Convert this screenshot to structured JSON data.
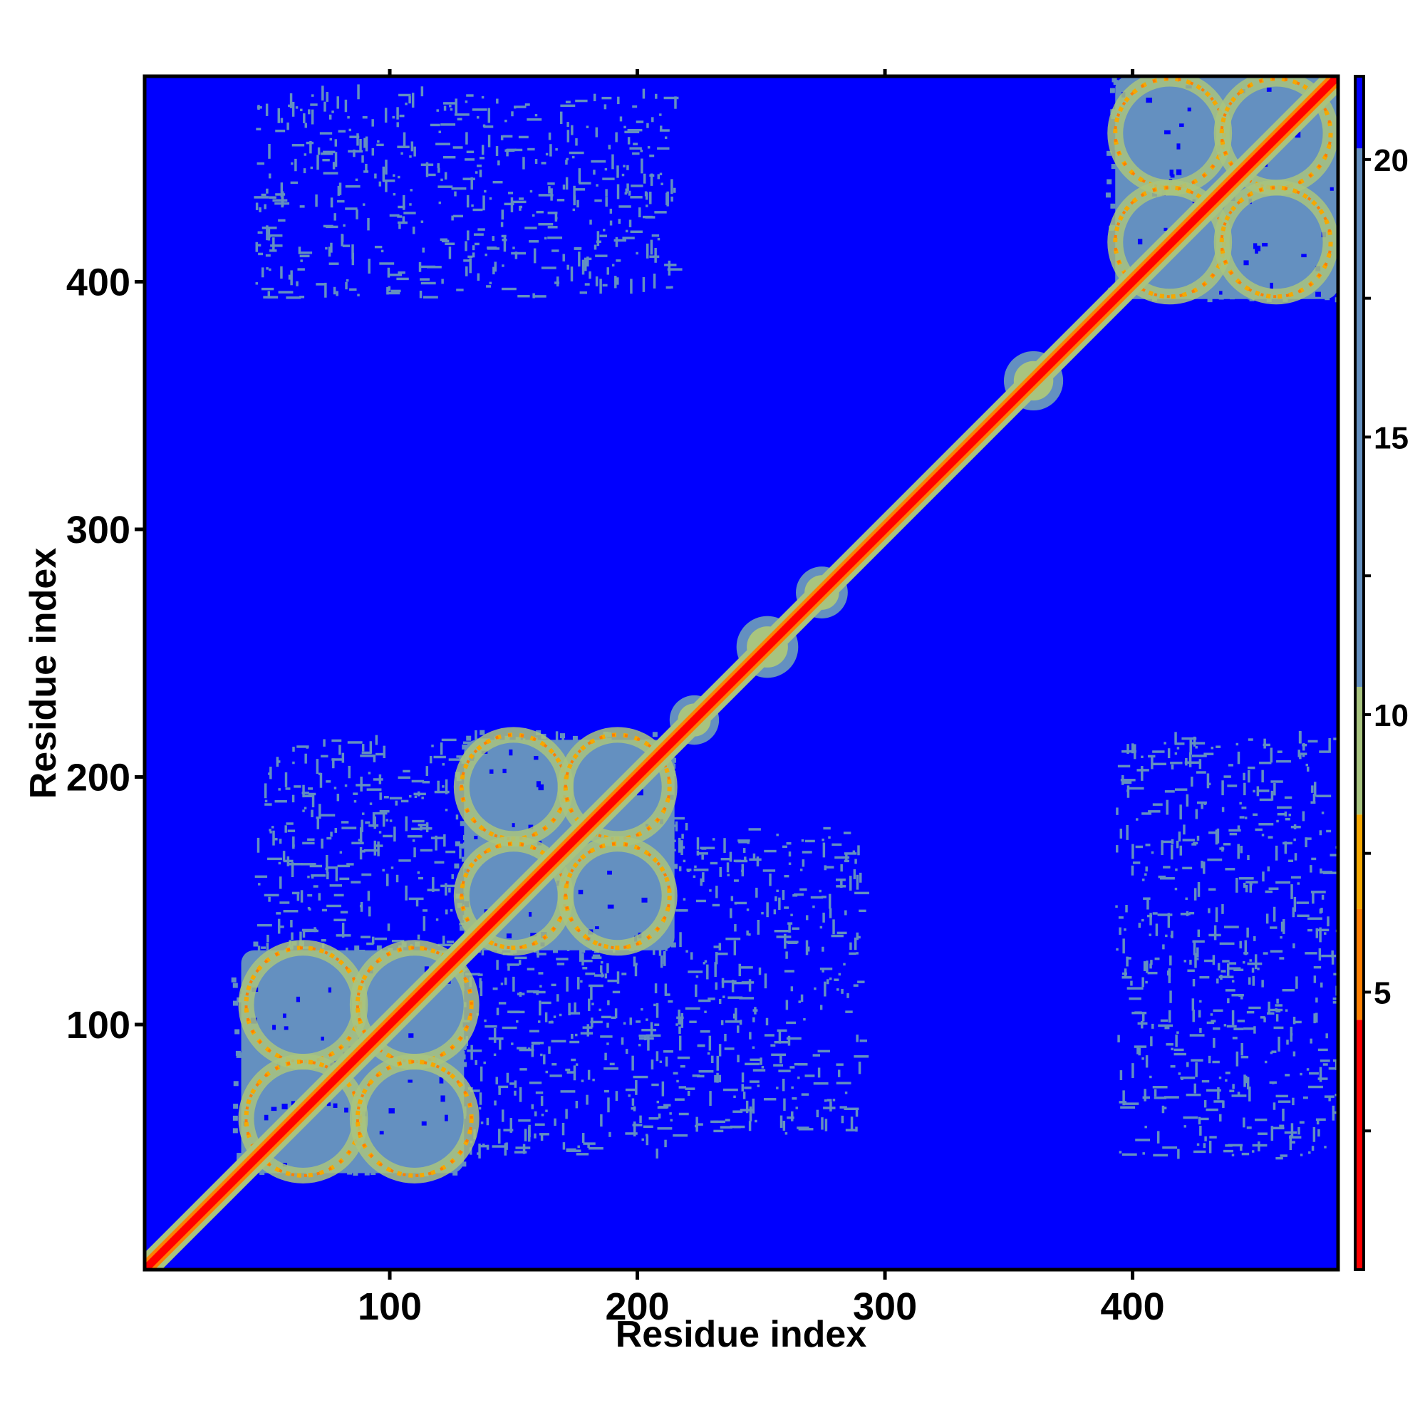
{
  "chart_data": {
    "type": "heatmap",
    "title": "",
    "xlabel": "Residue index",
    "ylabel": "Residue index",
    "xlim": [
      1,
      483
    ],
    "ylim": [
      1,
      483
    ],
    "x_ticks": [
      100,
      200,
      300,
      400
    ],
    "y_ticks": [
      100,
      200,
      300,
      400
    ],
    "x_tick_labels": [
      "100",
      "200",
      "300",
      "400"
    ],
    "y_tick_labels": [
      "100",
      "200",
      "300",
      "400"
    ],
    "colorbar": {
      "range": [
        0,
        21.5
      ],
      "ticks": [
        5,
        10,
        15,
        20
      ],
      "tick_labels": [
        "5",
        "10",
        "15",
        "20"
      ],
      "colors": [
        {
          "from": 0,
          "to": 4.5,
          "color": "#ff0000"
        },
        {
          "from": 4.5,
          "to": 6.5,
          "color": "#ff7f00"
        },
        {
          "from": 6.5,
          "to": 8.2,
          "color": "#f5a800"
        },
        {
          "from": 8.2,
          "to": 10.5,
          "color": "#a8c47f"
        },
        {
          "from": 10.5,
          "to": 20.2,
          "color": "#6490c0"
        },
        {
          "from": 20.2,
          "to": 21.5,
          "color": "#0000ff"
        }
      ]
    },
    "background_color": "#0000ff",
    "diagonal_color": "#ff0000",
    "domains": [
      {
        "x": [
          40,
          130
        ],
        "y": [
          40,
          130
        ]
      },
      {
        "x": [
          130,
          215
        ],
        "y": [
          130,
          215
        ]
      },
      {
        "x": [
          393,
          483
        ],
        "y": [
          393,
          483
        ]
      },
      {
        "x": [
          213,
          233
        ],
        "y": [
          213,
          233
        ]
      },
      {
        "x": [
          240,
          265
        ],
        "y": [
          240,
          265
        ]
      },
      {
        "x": [
          264,
          285
        ],
        "y": [
          264,
          285
        ]
      },
      {
        "x": [
          348,
          372
        ],
        "y": [
          348,
          372
        ]
      }
    ],
    "circles": [
      {
        "cx": 65,
        "cy": 108,
        "r": 23
      },
      {
        "cx": 110,
        "cy": 108,
        "r": 23
      },
      {
        "cx": 65,
        "cy": 62,
        "r": 23
      },
      {
        "cx": 110,
        "cy": 62,
        "r": 23
      },
      {
        "cx": 150,
        "cy": 196,
        "r": 21
      },
      {
        "cx": 192,
        "cy": 196,
        "r": 21
      },
      {
        "cx": 150,
        "cy": 152,
        "r": 21
      },
      {
        "cx": 192,
        "cy": 152,
        "r": 21
      },
      {
        "cx": 415,
        "cy": 460,
        "r": 22
      },
      {
        "cx": 458,
        "cy": 460,
        "r": 22
      },
      {
        "cx": 415,
        "cy": 416,
        "r": 22
      },
      {
        "cx": 458,
        "cy": 416,
        "r": 22
      }
    ],
    "sparse_blocks": [
      {
        "x": [
          45,
          215
        ],
        "y": [
          45,
          215
        ]
      },
      {
        "x": [
          45,
          215
        ],
        "y": [
          393,
          475
        ]
      },
      {
        "x": [
          393,
          483
        ],
        "y": [
          45,
          215
        ]
      },
      {
        "x": [
          215,
          290
        ],
        "y": [
          55,
          180
        ]
      }
    ]
  }
}
